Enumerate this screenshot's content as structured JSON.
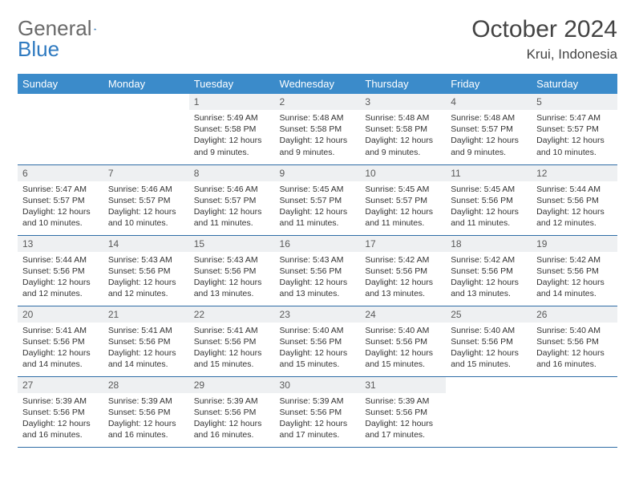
{
  "brand": {
    "general": "General",
    "blue": "Blue"
  },
  "title": "October 2024",
  "location": "Krui, Indonesia",
  "colors": {
    "header_bg": "#3b8bca",
    "header_text": "#ffffff",
    "daynum_bg": "#eef0f2",
    "row_border": "#2f6da6",
    "brand_general": "#6a6a6a",
    "brand_blue": "#2f7ac0"
  },
  "weekdays": [
    "Sunday",
    "Monday",
    "Tuesday",
    "Wednesday",
    "Thursday",
    "Friday",
    "Saturday"
  ],
  "layout": {
    "first_weekday_index": 2,
    "days_in_month": 31
  },
  "days": {
    "1": {
      "sunrise": "5:49 AM",
      "sunset": "5:58 PM",
      "daylight": "12 hours and 9 minutes."
    },
    "2": {
      "sunrise": "5:48 AM",
      "sunset": "5:58 PM",
      "daylight": "12 hours and 9 minutes."
    },
    "3": {
      "sunrise": "5:48 AM",
      "sunset": "5:58 PM",
      "daylight": "12 hours and 9 minutes."
    },
    "4": {
      "sunrise": "5:48 AM",
      "sunset": "5:57 PM",
      "daylight": "12 hours and 9 minutes."
    },
    "5": {
      "sunrise": "5:47 AM",
      "sunset": "5:57 PM",
      "daylight": "12 hours and 10 minutes."
    },
    "6": {
      "sunrise": "5:47 AM",
      "sunset": "5:57 PM",
      "daylight": "12 hours and 10 minutes."
    },
    "7": {
      "sunrise": "5:46 AM",
      "sunset": "5:57 PM",
      "daylight": "12 hours and 10 minutes."
    },
    "8": {
      "sunrise": "5:46 AM",
      "sunset": "5:57 PM",
      "daylight": "12 hours and 11 minutes."
    },
    "9": {
      "sunrise": "5:45 AM",
      "sunset": "5:57 PM",
      "daylight": "12 hours and 11 minutes."
    },
    "10": {
      "sunrise": "5:45 AM",
      "sunset": "5:57 PM",
      "daylight": "12 hours and 11 minutes."
    },
    "11": {
      "sunrise": "5:45 AM",
      "sunset": "5:56 PM",
      "daylight": "12 hours and 11 minutes."
    },
    "12": {
      "sunrise": "5:44 AM",
      "sunset": "5:56 PM",
      "daylight": "12 hours and 12 minutes."
    },
    "13": {
      "sunrise": "5:44 AM",
      "sunset": "5:56 PM",
      "daylight": "12 hours and 12 minutes."
    },
    "14": {
      "sunrise": "5:43 AM",
      "sunset": "5:56 PM",
      "daylight": "12 hours and 12 minutes."
    },
    "15": {
      "sunrise": "5:43 AM",
      "sunset": "5:56 PM",
      "daylight": "12 hours and 13 minutes."
    },
    "16": {
      "sunrise": "5:43 AM",
      "sunset": "5:56 PM",
      "daylight": "12 hours and 13 minutes."
    },
    "17": {
      "sunrise": "5:42 AM",
      "sunset": "5:56 PM",
      "daylight": "12 hours and 13 minutes."
    },
    "18": {
      "sunrise": "5:42 AM",
      "sunset": "5:56 PM",
      "daylight": "12 hours and 13 minutes."
    },
    "19": {
      "sunrise": "5:42 AM",
      "sunset": "5:56 PM",
      "daylight": "12 hours and 14 minutes."
    },
    "20": {
      "sunrise": "5:41 AM",
      "sunset": "5:56 PM",
      "daylight": "12 hours and 14 minutes."
    },
    "21": {
      "sunrise": "5:41 AM",
      "sunset": "5:56 PM",
      "daylight": "12 hours and 14 minutes."
    },
    "22": {
      "sunrise": "5:41 AM",
      "sunset": "5:56 PM",
      "daylight": "12 hours and 15 minutes."
    },
    "23": {
      "sunrise": "5:40 AM",
      "sunset": "5:56 PM",
      "daylight": "12 hours and 15 minutes."
    },
    "24": {
      "sunrise": "5:40 AM",
      "sunset": "5:56 PM",
      "daylight": "12 hours and 15 minutes."
    },
    "25": {
      "sunrise": "5:40 AM",
      "sunset": "5:56 PM",
      "daylight": "12 hours and 15 minutes."
    },
    "26": {
      "sunrise": "5:40 AM",
      "sunset": "5:56 PM",
      "daylight": "12 hours and 16 minutes."
    },
    "27": {
      "sunrise": "5:39 AM",
      "sunset": "5:56 PM",
      "daylight": "12 hours and 16 minutes."
    },
    "28": {
      "sunrise": "5:39 AM",
      "sunset": "5:56 PM",
      "daylight": "12 hours and 16 minutes."
    },
    "29": {
      "sunrise": "5:39 AM",
      "sunset": "5:56 PM",
      "daylight": "12 hours and 16 minutes."
    },
    "30": {
      "sunrise": "5:39 AM",
      "sunset": "5:56 PM",
      "daylight": "12 hours and 17 minutes."
    },
    "31": {
      "sunrise": "5:39 AM",
      "sunset": "5:56 PM",
      "daylight": "12 hours and 17 minutes."
    }
  },
  "labels": {
    "sunrise": "Sunrise:",
    "sunset": "Sunset:",
    "daylight": "Daylight:"
  }
}
